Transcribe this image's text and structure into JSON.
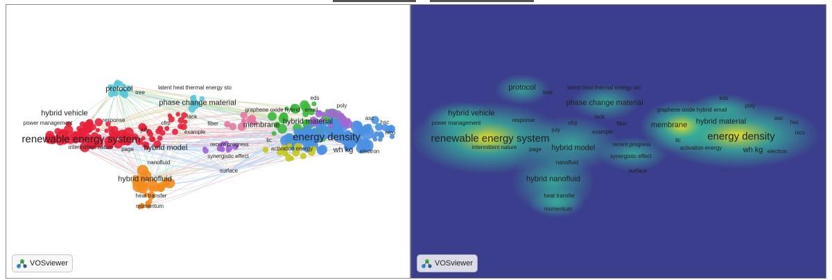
{
  "logo": {
    "text": "VOSviewer",
    "icon": "vosviewer-logo-icon"
  },
  "colors": {
    "red": "#e8203a",
    "cyan": "#58c8d8",
    "orange": "#f28c1e",
    "green": "#3cb83c",
    "blue": "#4a90e2",
    "purple": "#a266d6",
    "pink": "#e678a0",
    "olive": "#c4c81e",
    "density_bg": "#3b3e8c",
    "density_mid": "#36b59a",
    "density_hot": "#f0e61e"
  },
  "labels": {
    "protocol": "protocol",
    "tree": "tree",
    "latent_heat": "latent heat thermal energy sto",
    "phase_change": "phase change material",
    "graphene": "graphene oxide hybrid",
    "eds": "eds",
    "email": "email",
    "poly": "poly",
    "hybrid_vehicle": "hybrid vehicle",
    "response": "response",
    "lack": "lack",
    "cfrp": "cfrp",
    "fiber": "fiber",
    "membrane": "membrane",
    "hybrid_material": "hybrid material",
    "asc": "asc",
    "hsc": "hsc",
    "power_management": "power management",
    "july": "july",
    "example": "example",
    "renewable": "renewable energy system",
    "energy_density": "energy density",
    "nico": "nico",
    "lic": "lic",
    "intermittent": "intermittent nature",
    "page": "page",
    "hybrid_model": "hybrid model",
    "recent_progress": "recent progress",
    "activation_energy": "activation energy",
    "wh_kg": "wh kg",
    "electron": "electron",
    "synergistic": "synergistic effect",
    "nanofluid": "nanofluid",
    "surface": "surface",
    "hybrid_nanofluid": "hybrid nanofluid",
    "heat_transfer": "heat transfer",
    "momentum": "momentum"
  }
}
